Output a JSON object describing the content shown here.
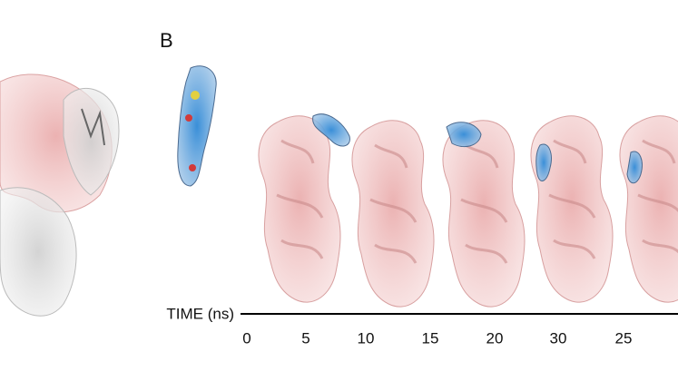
{
  "panel_label": "B",
  "timeline": {
    "label": "TIME (ns)",
    "ticks": [
      "0",
      "5",
      "10",
      "15",
      "20",
      "30",
      "25"
    ]
  }
}
